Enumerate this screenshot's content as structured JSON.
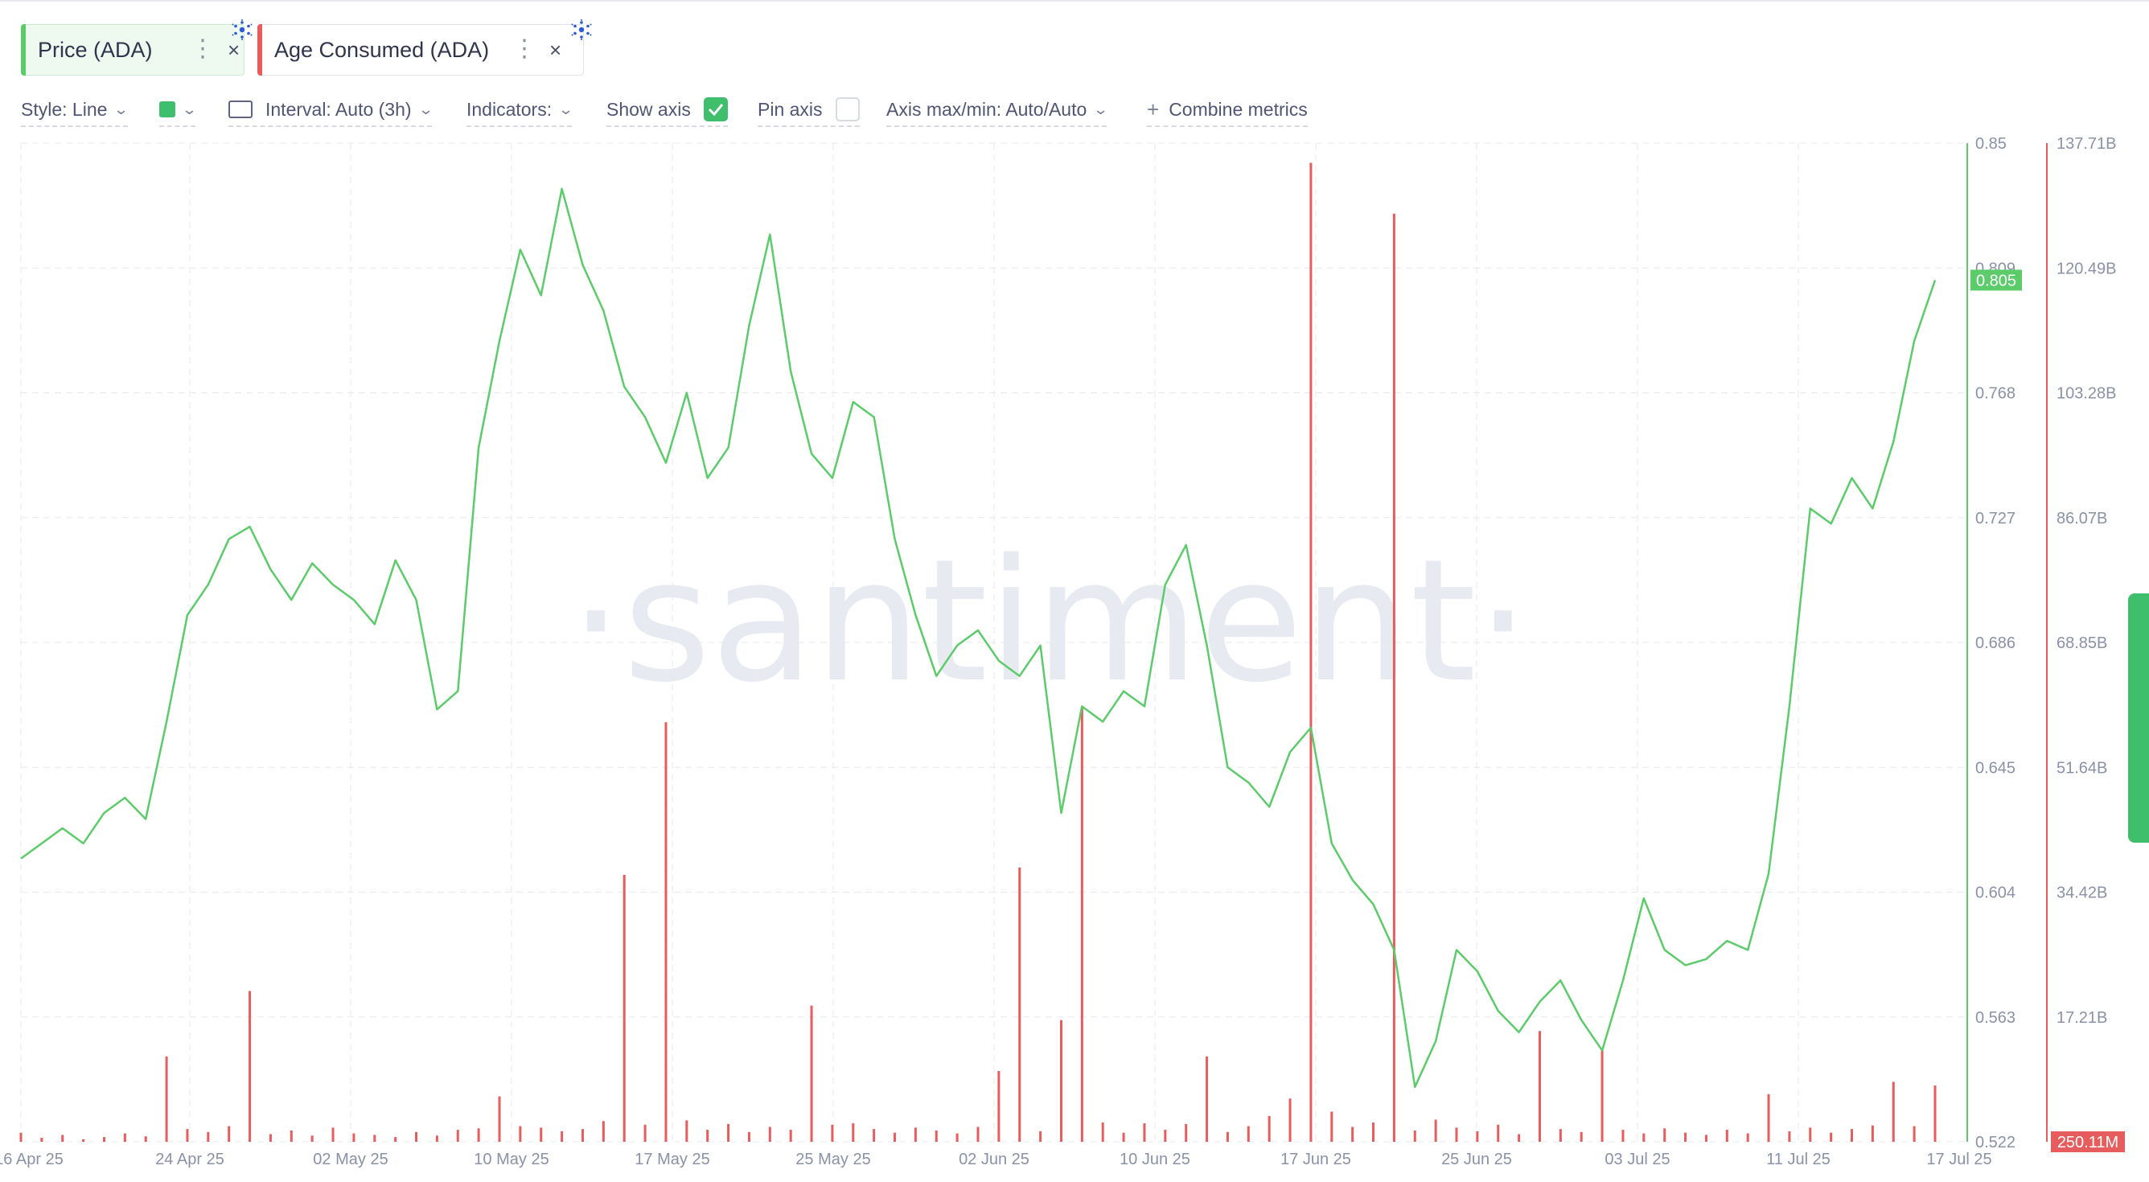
{
  "metrics": [
    {
      "label": "Price (ADA)",
      "color": "#5ccb6a",
      "active": true
    },
    {
      "label": "Age Consumed (ADA)",
      "color": "#e75c5c",
      "active": false
    }
  ],
  "icons": {
    "menu": "⋮",
    "close": "×",
    "check": "✓",
    "chevron": "⌄",
    "plus": "+"
  },
  "settings": {
    "style": "Style: Line",
    "interval": "Interval: Auto (3h)",
    "indicators": "Indicators:",
    "show_axis": "Show axis",
    "show_axis_checked": true,
    "pin_axis": "Pin axis",
    "pin_axis_checked": false,
    "axis_maxmin": "Axis max/min: Auto/Auto",
    "combine": "Combine metrics"
  },
  "watermark": "·santiment·",
  "chart_data": {
    "type": "line",
    "title": "",
    "x_ticks": [
      "16 Apr 25",
      "24 Apr 25",
      "02 May 25",
      "10 May 25",
      "17 May 25",
      "25 May 25",
      "02 Jun 25",
      "10 Jun 25",
      "17 Jun 25",
      "25 Jun 25",
      "03 Jul 25",
      "11 Jul 25",
      "17 Jul 25"
    ],
    "x_range": [
      "2025-04-16",
      "2025-07-17"
    ],
    "price_axis": {
      "ticks": [
        "0.85",
        "0.809",
        "0.768",
        "0.727",
        "0.686",
        "0.645",
        "0.604",
        "0.563",
        "0.522"
      ],
      "min": 0.522,
      "max": 0.85,
      "current_label": "0.805"
    },
    "age_axis": {
      "ticks": [
        "137.71B",
        "120.49B",
        "103.28B",
        "86.07B",
        "68.85B",
        "51.64B",
        "34.42B",
        "17.21B"
      ],
      "min_label": "250.11M",
      "min": 0.25,
      "max": 137.71,
      "unit": "B"
    },
    "series": [
      {
        "name": "Price (ADA)",
        "color": "#5ccb6a",
        "axis": "price",
        "points": [
          [
            "2025-04-16",
            0.615
          ],
          [
            "2025-04-17",
            0.62
          ],
          [
            "2025-04-18",
            0.625
          ],
          [
            "2025-04-19",
            0.62
          ],
          [
            "2025-04-20",
            0.63
          ],
          [
            "2025-04-21",
            0.635
          ],
          [
            "2025-04-22",
            0.628
          ],
          [
            "2025-04-23",
            0.66
          ],
          [
            "2025-04-24",
            0.695
          ],
          [
            "2025-04-25",
            0.705
          ],
          [
            "2025-04-26",
            0.72
          ],
          [
            "2025-04-27",
            0.724
          ],
          [
            "2025-04-28",
            0.71
          ],
          [
            "2025-04-29",
            0.7
          ],
          [
            "2025-04-30",
            0.712
          ],
          [
            "2025-05-01",
            0.705
          ],
          [
            "2025-05-02",
            0.7
          ],
          [
            "2025-05-03",
            0.692
          ],
          [
            "2025-05-04",
            0.713
          ],
          [
            "2025-05-05",
            0.7
          ],
          [
            "2025-05-06",
            0.664
          ],
          [
            "2025-05-07",
            0.67
          ],
          [
            "2025-05-08",
            0.75
          ],
          [
            "2025-05-09",
            0.785
          ],
          [
            "2025-05-10",
            0.815
          ],
          [
            "2025-05-11",
            0.8
          ],
          [
            "2025-05-12",
            0.835
          ],
          [
            "2025-05-13",
            0.81
          ],
          [
            "2025-05-14",
            0.795
          ],
          [
            "2025-05-15",
            0.77
          ],
          [
            "2025-05-16",
            0.76
          ],
          [
            "2025-05-17",
            0.745
          ],
          [
            "2025-05-18",
            0.768
          ],
          [
            "2025-05-19",
            0.74
          ],
          [
            "2025-05-20",
            0.75
          ],
          [
            "2025-05-21",
            0.79
          ],
          [
            "2025-05-22",
            0.82
          ],
          [
            "2025-05-23",
            0.775
          ],
          [
            "2025-05-24",
            0.748
          ],
          [
            "2025-05-25",
            0.74
          ],
          [
            "2025-05-26",
            0.765
          ],
          [
            "2025-05-27",
            0.76
          ],
          [
            "2025-05-28",
            0.72
          ],
          [
            "2025-05-29",
            0.695
          ],
          [
            "2025-05-30",
            0.675
          ],
          [
            "2025-05-31",
            0.685
          ],
          [
            "2025-06-01",
            0.69
          ],
          [
            "2025-06-02",
            0.68
          ],
          [
            "2025-06-03",
            0.675
          ],
          [
            "2025-06-04",
            0.685
          ],
          [
            "2025-06-05",
            0.63
          ],
          [
            "2025-06-06",
            0.665
          ],
          [
            "2025-06-07",
            0.66
          ],
          [
            "2025-06-08",
            0.67
          ],
          [
            "2025-06-09",
            0.665
          ],
          [
            "2025-06-10",
            0.705
          ],
          [
            "2025-06-11",
            0.718
          ],
          [
            "2025-06-12",
            0.685
          ],
          [
            "2025-06-13",
            0.645
          ],
          [
            "2025-06-14",
            0.64
          ],
          [
            "2025-06-15",
            0.632
          ],
          [
            "2025-06-16",
            0.65
          ],
          [
            "2025-06-17",
            0.658
          ],
          [
            "2025-06-18",
            0.62
          ],
          [
            "2025-06-19",
            0.608
          ],
          [
            "2025-06-20",
            0.6
          ],
          [
            "2025-06-21",
            0.585
          ],
          [
            "2025-06-22",
            0.54
          ],
          [
            "2025-06-23",
            0.555
          ],
          [
            "2025-06-24",
            0.585
          ],
          [
            "2025-06-25",
            0.578
          ],
          [
            "2025-06-26",
            0.565
          ],
          [
            "2025-06-27",
            0.558
          ],
          [
            "2025-06-28",
            0.568
          ],
          [
            "2025-06-29",
            0.575
          ],
          [
            "2025-06-30",
            0.562
          ],
          [
            "2025-07-01",
            0.552
          ],
          [
            "2025-07-02",
            0.575
          ],
          [
            "2025-07-03",
            0.602
          ],
          [
            "2025-07-04",
            0.585
          ],
          [
            "2025-07-05",
            0.58
          ],
          [
            "2025-07-06",
            0.582
          ],
          [
            "2025-07-07",
            0.588
          ],
          [
            "2025-07-08",
            0.585
          ],
          [
            "2025-07-09",
            0.61
          ],
          [
            "2025-07-10",
            0.665
          ],
          [
            "2025-07-11",
            0.73
          ],
          [
            "2025-07-12",
            0.725
          ],
          [
            "2025-07-13",
            0.74
          ],
          [
            "2025-07-14",
            0.73
          ],
          [
            "2025-07-15",
            0.752
          ],
          [
            "2025-07-16",
            0.785
          ],
          [
            "2025-07-17",
            0.805
          ]
        ]
      },
      {
        "name": "Age Consumed (ADA)",
        "color": "#e75c5c",
        "axis": "age",
        "points": [
          [
            "2025-04-16",
            1.5
          ],
          [
            "2025-04-17",
            0.8
          ],
          [
            "2025-04-18",
            1.2
          ],
          [
            "2025-04-19",
            0.6
          ],
          [
            "2025-04-20",
            0.9
          ],
          [
            "2025-04-21",
            1.4
          ],
          [
            "2025-04-22",
            1.0
          ],
          [
            "2025-04-23",
            12.0
          ],
          [
            "2025-04-24",
            2.0
          ],
          [
            "2025-04-25",
            1.6
          ],
          [
            "2025-04-26",
            2.4
          ],
          [
            "2025-04-27",
            21.0
          ],
          [
            "2025-04-28",
            1.3
          ],
          [
            "2025-04-29",
            1.8
          ],
          [
            "2025-04-30",
            1.1
          ],
          [
            "2025-05-01",
            2.2
          ],
          [
            "2025-05-02",
            1.4
          ],
          [
            "2025-05-03",
            1.2
          ],
          [
            "2025-05-04",
            0.9
          ],
          [
            "2025-05-05",
            1.6
          ],
          [
            "2025-05-06",
            1.1
          ],
          [
            "2025-05-07",
            1.9
          ],
          [
            "2025-05-08",
            2.1
          ],
          [
            "2025-05-09",
            6.5
          ],
          [
            "2025-05-10",
            2.4
          ],
          [
            "2025-05-11",
            2.2
          ],
          [
            "2025-05-12",
            1.7
          ],
          [
            "2025-05-13",
            2.0
          ],
          [
            "2025-05-14",
            3.1
          ],
          [
            "2025-05-15",
            37.0
          ],
          [
            "2025-05-16",
            2.6
          ],
          [
            "2025-05-17",
            58.0
          ],
          [
            "2025-05-18",
            3.2
          ],
          [
            "2025-05-19",
            1.9
          ],
          [
            "2025-05-20",
            2.7
          ],
          [
            "2025-05-21",
            1.6
          ],
          [
            "2025-05-22",
            2.3
          ],
          [
            "2025-05-23",
            1.9
          ],
          [
            "2025-05-24",
            19.0
          ],
          [
            "2025-05-25",
            2.6
          ],
          [
            "2025-05-26",
            2.8
          ],
          [
            "2025-05-27",
            2.0
          ],
          [
            "2025-05-28",
            1.5
          ],
          [
            "2025-05-29",
            2.2
          ],
          [
            "2025-05-30",
            1.8
          ],
          [
            "2025-05-31",
            1.4
          ],
          [
            "2025-06-01",
            2.3
          ],
          [
            "2025-06-02",
            10.0
          ],
          [
            "2025-06-03",
            38.0
          ],
          [
            "2025-06-04",
            1.7
          ],
          [
            "2025-06-05",
            17.0
          ],
          [
            "2025-06-06",
            60.0
          ],
          [
            "2025-06-07",
            2.9
          ],
          [
            "2025-06-08",
            1.5
          ],
          [
            "2025-06-09",
            2.8
          ],
          [
            "2025-06-10",
            1.9
          ],
          [
            "2025-06-11",
            2.7
          ],
          [
            "2025-06-12",
            12.0
          ],
          [
            "2025-06-13",
            1.6
          ],
          [
            "2025-06-14",
            2.4
          ],
          [
            "2025-06-15",
            3.8
          ],
          [
            "2025-06-16",
            6.2
          ],
          [
            "2025-06-17",
            135.0
          ],
          [
            "2025-06-18",
            4.4
          ],
          [
            "2025-06-19",
            2.3
          ],
          [
            "2025-06-20",
            2.9
          ],
          [
            "2025-06-21",
            128.0
          ],
          [
            "2025-06-22",
            1.8
          ],
          [
            "2025-06-23",
            3.3
          ],
          [
            "2025-06-24",
            2.2
          ],
          [
            "2025-06-25",
            1.7
          ],
          [
            "2025-06-26",
            2.6
          ],
          [
            "2025-06-27",
            1.3
          ],
          [
            "2025-06-28",
            15.5
          ],
          [
            "2025-06-29",
            2.0
          ],
          [
            "2025-06-30",
            1.6
          ],
          [
            "2025-07-01",
            13.0
          ],
          [
            "2025-07-02",
            1.9
          ],
          [
            "2025-07-03",
            1.4
          ],
          [
            "2025-07-04",
            2.1
          ],
          [
            "2025-07-05",
            1.5
          ],
          [
            "2025-07-06",
            1.2
          ],
          [
            "2025-07-07",
            1.9
          ],
          [
            "2025-07-08",
            1.4
          ],
          [
            "2025-07-09",
            6.8
          ],
          [
            "2025-07-10",
            1.7
          ],
          [
            "2025-07-11",
            2.2
          ],
          [
            "2025-07-12",
            1.5
          ],
          [
            "2025-07-13",
            2.0
          ],
          [
            "2025-07-14",
            2.5
          ],
          [
            "2025-07-15",
            8.5
          ],
          [
            "2025-07-16",
            2.4
          ],
          [
            "2025-07-17",
            8.0
          ]
        ]
      }
    ],
    "grid": true
  }
}
